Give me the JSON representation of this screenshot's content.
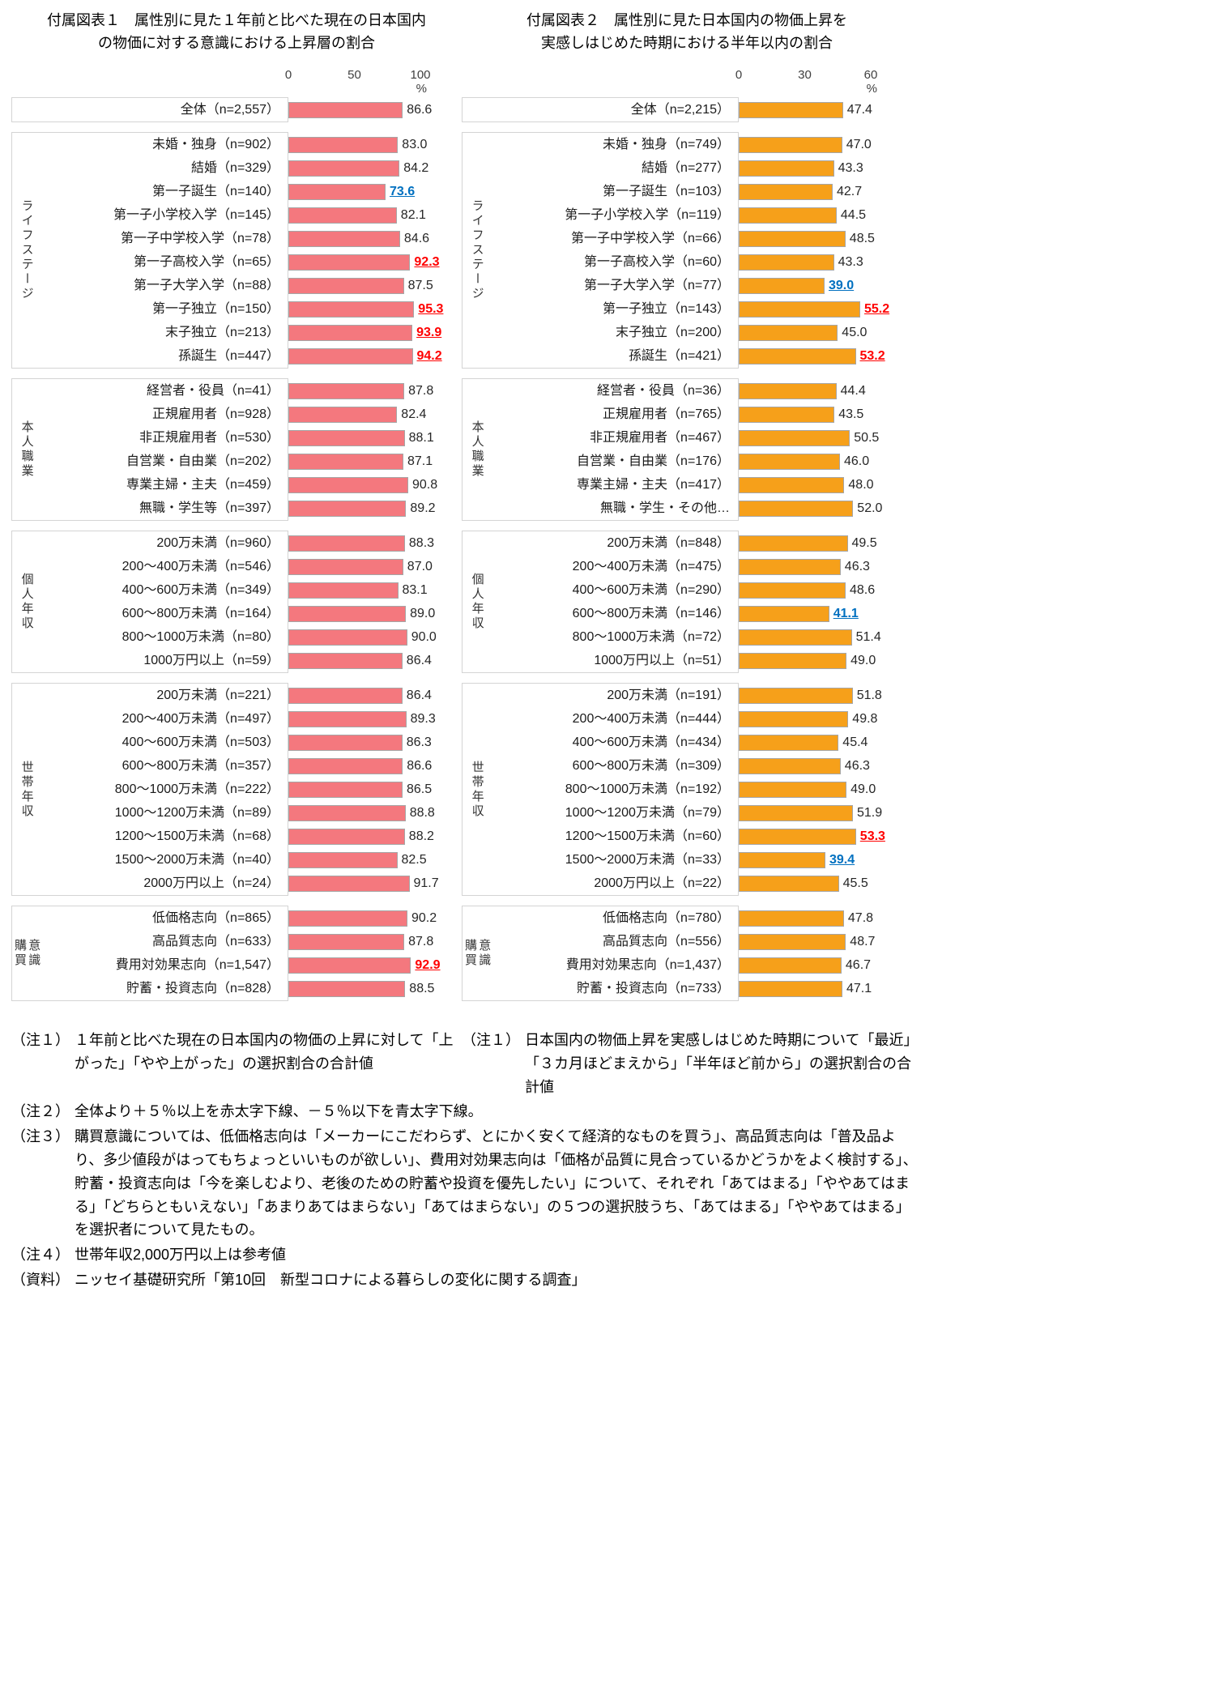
{
  "chart_data": [
    {
      "type": "bar",
      "title_lines": [
        "付属図表１　属性別に見た１年前と比べた現在の日本国内",
        "の物価に対する意識における上昇層の割合"
      ],
      "ticks": [
        "0",
        "50",
        "100"
      ],
      "unit": "%",
      "xlim": [
        0,
        100
      ],
      "bar_color": "#f4787e",
      "bar_border": "#a6a6a6",
      "groups": [
        {
          "label": "",
          "rows": [
            {
              "label": "全体（n=2,557）",
              "value": 86.6
            }
          ]
        },
        {
          "label": "ライフステージ",
          "rows": [
            {
              "label": "未婚・独身（n=902）",
              "value": 83.0
            },
            {
              "label": "結婚（n=329）",
              "value": 84.2
            },
            {
              "label": "第一子誕生（n=140）",
              "value": 73.6,
              "mark": "blue"
            },
            {
              "label": "第一子小学校入学（n=145）",
              "value": 82.1
            },
            {
              "label": "第一子中学校入学（n=78）",
              "value": 84.6
            },
            {
              "label": "第一子高校入学（n=65）",
              "value": 92.3,
              "mark": "red"
            },
            {
              "label": "第一子大学入学（n=88）",
              "value": 87.5
            },
            {
              "label": "第一子独立（n=150）",
              "value": 95.3,
              "mark": "red"
            },
            {
              "label": "末子独立（n=213）",
              "value": 93.9,
              "mark": "red"
            },
            {
              "label": "孫誕生（n=447）",
              "value": 94.2,
              "mark": "red"
            }
          ]
        },
        {
          "label": "本人職業",
          "rows": [
            {
              "label": "経営者・役員（n=41）",
              "value": 87.8
            },
            {
              "label": "正規雇用者（n=928）",
              "value": 82.4
            },
            {
              "label": "非正規雇用者（n=530）",
              "value": 88.1
            },
            {
              "label": "自営業・自由業（n=202）",
              "value": 87.1
            },
            {
              "label": "専業主婦・主夫（n=459）",
              "value": 90.8
            },
            {
              "label": "無職・学生等（n=397）",
              "value": 89.2
            }
          ]
        },
        {
          "label": "個人年収",
          "rows": [
            {
              "label": "200万未満（n=960）",
              "value": 88.3
            },
            {
              "label": "200〜400万未満（n=546）",
              "value": 87.0
            },
            {
              "label": "400〜600万未満（n=349）",
              "value": 83.1
            },
            {
              "label": "600〜800万未満（n=164）",
              "value": 89.0
            },
            {
              "label": "800〜1000万未満（n=80）",
              "value": 90.0
            },
            {
              "label": "1000万円以上（n=59）",
              "value": 86.4
            }
          ]
        },
        {
          "label": "世帯年収",
          "rows": [
            {
              "label": "200万未満（n=221）",
              "value": 86.4
            },
            {
              "label": "200〜400万未満（n=497）",
              "value": 89.3
            },
            {
              "label": "400〜600万未満（n=503）",
              "value": 86.3
            },
            {
              "label": "600〜800万未満（n=357）",
              "value": 86.6
            },
            {
              "label": "800〜1000万未満（n=222）",
              "value": 86.5
            },
            {
              "label": "1000〜1200万未満（n=89）",
              "value": 88.8
            },
            {
              "label": "1200〜1500万未満（n=68）",
              "value": 88.2
            },
            {
              "label": "1500〜2000万未満（n=40）",
              "value": 82.5
            },
            {
              "label": "2000万円以上（n=24）",
              "value": 91.7
            }
          ]
        },
        {
          "label": "購買\n意識",
          "rows": [
            {
              "label": "低価格志向（n=865）",
              "value": 90.2
            },
            {
              "label": "高品質志向（n=633）",
              "value": 87.8
            },
            {
              "label": "費用対効果志向（n=1,547）",
              "value": 92.9,
              "mark": "red"
            },
            {
              "label": "貯蓄・投資志向（n=828）",
              "value": 88.5
            }
          ]
        }
      ]
    },
    {
      "type": "bar",
      "title_lines": [
        "付属図表２　属性別に見た日本国内の物価上昇を",
        "実感しはじめた時期における半年以内の割合"
      ],
      "ticks": [
        "0",
        "30",
        "60"
      ],
      "unit": "%",
      "xlim": [
        0,
        60
      ],
      "bar_color": "#f6a01a",
      "bar_border": "#a6a6a6",
      "groups": [
        {
          "label": "",
          "rows": [
            {
              "label": "全体（n=2,215）",
              "value": 47.4
            }
          ]
        },
        {
          "label": "ライフステージ",
          "rows": [
            {
              "label": "未婚・独身（n=749）",
              "value": 47.0
            },
            {
              "label": "結婚（n=277）",
              "value": 43.3
            },
            {
              "label": "第一子誕生（n=103）",
              "value": 42.7
            },
            {
              "label": "第一子小学校入学（n=119）",
              "value": 44.5
            },
            {
              "label": "第一子中学校入学（n=66）",
              "value": 48.5
            },
            {
              "label": "第一子高校入学（n=60）",
              "value": 43.3
            },
            {
              "label": "第一子大学入学（n=77）",
              "value": 39.0,
              "mark": "blue"
            },
            {
              "label": "第一子独立（n=143）",
              "value": 55.2,
              "mark": "red"
            },
            {
              "label": "末子独立（n=200）",
              "value": 45.0
            },
            {
              "label": "孫誕生（n=421）",
              "value": 53.2,
              "mark": "red"
            }
          ]
        },
        {
          "label": "本人職業",
          "rows": [
            {
              "label": "経営者・役員（n=36）",
              "value": 44.4
            },
            {
              "label": "正規雇用者（n=765）",
              "value": 43.5
            },
            {
              "label": "非正規雇用者（n=467）",
              "value": 50.5
            },
            {
              "label": "自営業・自由業（n=176）",
              "value": 46.0
            },
            {
              "label": "専業主婦・主夫（n=417）",
              "value": 48.0
            },
            {
              "label": "無職・学生・その他…",
              "value": 52.0
            }
          ]
        },
        {
          "label": "個人年収",
          "rows": [
            {
              "label": "200万未満（n=848）",
              "value": 49.5
            },
            {
              "label": "200〜400万未満（n=475）",
              "value": 46.3
            },
            {
              "label": "400〜600万未満（n=290）",
              "value": 48.6
            },
            {
              "label": "600〜800万未満（n=146）",
              "value": 41.1,
              "mark": "blue"
            },
            {
              "label": "800〜1000万未満（n=72）",
              "value": 51.4
            },
            {
              "label": "1000万円以上（n=51）",
              "value": 49.0
            }
          ]
        },
        {
          "label": "世帯年収",
          "rows": [
            {
              "label": "200万未満（n=191）",
              "value": 51.8
            },
            {
              "label": "200〜400万未満（n=444）",
              "value": 49.8
            },
            {
              "label": "400〜600万未満（n=434）",
              "value": 45.4
            },
            {
              "label": "600〜800万未満（n=309）",
              "value": 46.3
            },
            {
              "label": "800〜1000万未満（n=192）",
              "value": 49.0
            },
            {
              "label": "1000〜1200万未満（n=79）",
              "value": 51.9
            },
            {
              "label": "1200〜1500万未満（n=60）",
              "value": 53.3,
              "mark": "red"
            },
            {
              "label": "1500〜2000万未満（n=33）",
              "value": 39.4,
              "mark": "blue"
            },
            {
              "label": "2000万円以上（n=22）",
              "value": 45.5
            }
          ]
        },
        {
          "label": "購買\n意識",
          "rows": [
            {
              "label": "低価格志向（n=780）",
              "value": 47.8
            },
            {
              "label": "高品質志向（n=556）",
              "value": 48.7
            },
            {
              "label": "費用対効果志向（n=1,437）",
              "value": 46.7
            },
            {
              "label": "貯蓄・投資志向（n=733）",
              "value": 47.1
            }
          ]
        }
      ]
    }
  ],
  "mark_colors": {
    "red": "#ff0000",
    "blue": "#0070c0"
  },
  "notes": {
    "note1_left_label": "（注１）",
    "note1_left": "１年前と比べた現在の日本国内の物価の上昇に対して「上がった」「やや上がった」の選択割合の合計値",
    "note1_right_label": "（注１）",
    "note1_right": "日本国内の物価上昇を実感しはじめた時期について「最近」「３カ月ほどまえから」「半年ほど前から」の選択割合の合計値",
    "note2_label": "（注２）",
    "note2": "全体より＋５％以上を赤太字下線、－５％以下を青太字下線。",
    "note3_label": "（注３）",
    "note3": "購買意識については、低価格志向は「メーカーにこだわらず、とにかく安くて経済的なものを買う」、高品質志向は「普及品より、多少値段がはってもちょっといいものが欲しい」、費用対効果志向は「価格が品質に見合っているかどうかをよく検討する」、貯蓄・投資志向は「今を楽しむより、老後のための貯蓄や投資を優先したい」について、それぞれ「あてはまる」「ややあてはまる」「どちらともいえない」「あまりあてはまらない」「あてはまらない」の５つの選択肢うち、「あてはまる」「ややあてはまる」を選択者について見たもの。",
    "note4_label": "（注４）",
    "note4": "世帯年収2,000万円以上は参考値",
    "source_label": "（資料）",
    "source": "ニッセイ基礎研究所「第10回　新型コロナによる暮らしの変化に関する調査」"
  }
}
